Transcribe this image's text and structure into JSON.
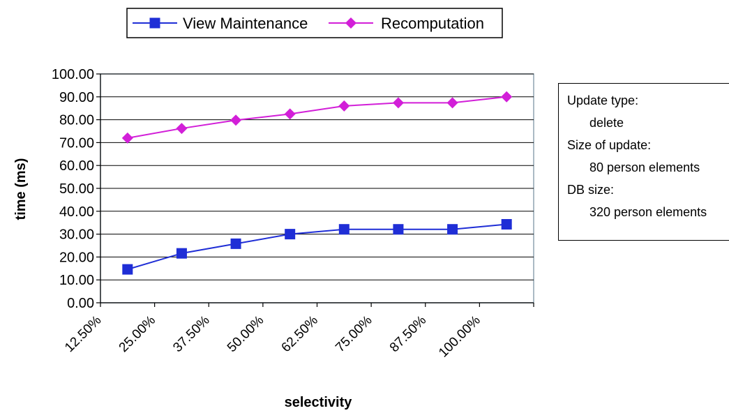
{
  "chart_data": {
    "type": "line",
    "categories": [
      "12.50%",
      "25.00%",
      "37.50%",
      "50.00%",
      "62.50%",
      "75.00%",
      "87.50%",
      "100.00%"
    ],
    "series": [
      {
        "name": "View Maintenance",
        "color": "#1f2ed6",
        "marker": "square",
        "values": [
          14.6,
          21.6,
          25.8,
          30.0,
          32.1,
          32.1,
          32.1,
          34.3
        ]
      },
      {
        "name": "Recomputation",
        "color": "#d21fd8",
        "marker": "diamond",
        "values": [
          72.0,
          76.2,
          79.8,
          82.5,
          86.0,
          87.4,
          87.4,
          90.0
        ]
      }
    ],
    "title": "",
    "xlabel": "selectivity",
    "ylabel": "time (ms)",
    "ylim": [
      0,
      100
    ],
    "yticks": [
      "0.00",
      "10.00",
      "20.00",
      "30.00",
      "40.00",
      "50.00",
      "60.00",
      "70.00",
      "80.00",
      "90.00",
      "100.00"
    ],
    "grid": true,
    "legend": "top"
  },
  "info": {
    "update_type_label": "Update type:",
    "update_type_value": "delete",
    "size_label": "Size of update:",
    "size_value": "80 person elements",
    "db_label": "DB size:",
    "db_value": "320 person elements"
  }
}
